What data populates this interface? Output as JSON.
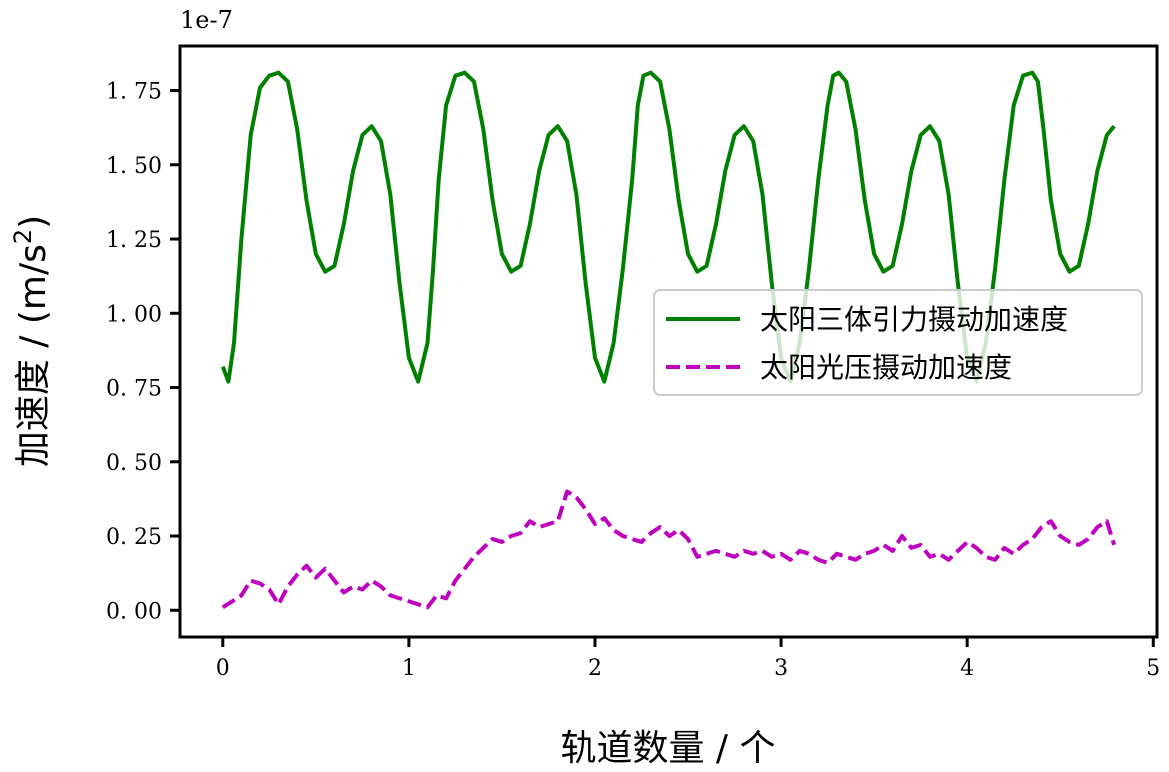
{
  "chart_data": {
    "type": "line",
    "xlabel": "轨道数量 / 个",
    "ylabel_prefix": "加速度 / (m/s",
    "ylabel_sup": "2",
    "ylabel_suffix": ")",
    "y_offset_text": "1e-7",
    "xlim": [
      -0.23,
      5.02
    ],
    "ylim": [
      -0.09,
      1.9
    ],
    "xticks": [
      0,
      1,
      2,
      3,
      4,
      5
    ],
    "xtick_labels": [
      "0",
      "1",
      "2",
      "3",
      "4",
      "5"
    ],
    "yticks": [
      0.0,
      0.25,
      0.5,
      0.75,
      1.0,
      1.25,
      1.5,
      1.75
    ],
    "ytick_labels": [
      "0. 00",
      "0. 25",
      "0. 50",
      "0. 75",
      "1. 00",
      "1. 25",
      "1. 50",
      "1. 75"
    ],
    "legend_position": "center-right",
    "series": [
      {
        "name": "太阳三体引力摄动加速度",
        "color": "#008000",
        "style": "solid",
        "x": [
          0.0,
          0.03,
          0.06,
          0.1,
          0.15,
          0.2,
          0.25,
          0.3,
          0.35,
          0.4,
          0.45,
          0.5,
          0.55,
          0.6,
          0.65,
          0.7,
          0.75,
          0.8,
          0.85,
          0.9,
          0.95,
          1.0,
          1.05,
          1.1,
          1.13,
          1.16,
          1.2,
          1.25,
          1.3,
          1.35,
          1.4,
          1.45,
          1.5,
          1.55,
          1.6,
          1.65,
          1.7,
          1.75,
          1.8,
          1.85,
          1.9,
          1.95,
          2.0,
          2.05,
          2.1,
          2.15,
          2.2,
          2.23,
          2.26,
          2.3,
          2.35,
          2.4,
          2.45,
          2.5,
          2.55,
          2.6,
          2.65,
          2.7,
          2.75,
          2.8,
          2.85,
          2.9,
          2.95,
          3.0,
          3.05,
          3.1,
          3.15,
          3.2,
          3.25,
          3.28,
          3.31,
          3.35,
          3.4,
          3.45,
          3.5,
          3.55,
          3.6,
          3.65,
          3.7,
          3.75,
          3.8,
          3.85,
          3.9,
          3.95,
          4.0,
          4.05,
          4.1,
          4.15,
          4.2,
          4.25,
          4.3,
          4.35,
          4.38,
          4.41,
          4.45,
          4.5,
          4.55,
          4.6,
          4.65,
          4.7,
          4.75,
          4.79
        ],
        "y": [
          0.82,
          0.77,
          0.9,
          1.25,
          1.6,
          1.76,
          1.8,
          1.81,
          1.78,
          1.62,
          1.38,
          1.2,
          1.14,
          1.16,
          1.3,
          1.48,
          1.6,
          1.63,
          1.58,
          1.4,
          1.1,
          0.85,
          0.77,
          0.9,
          1.15,
          1.45,
          1.7,
          1.8,
          1.81,
          1.78,
          1.62,
          1.38,
          1.2,
          1.14,
          1.16,
          1.3,
          1.48,
          1.6,
          1.63,
          1.58,
          1.4,
          1.1,
          0.85,
          0.77,
          0.9,
          1.15,
          1.45,
          1.7,
          1.8,
          1.81,
          1.78,
          1.62,
          1.38,
          1.2,
          1.14,
          1.16,
          1.3,
          1.48,
          1.6,
          1.63,
          1.58,
          1.4,
          1.1,
          0.85,
          0.77,
          0.9,
          1.15,
          1.45,
          1.7,
          1.8,
          1.81,
          1.78,
          1.62,
          1.38,
          1.2,
          1.14,
          1.16,
          1.3,
          1.48,
          1.6,
          1.63,
          1.58,
          1.4,
          1.1,
          0.85,
          0.77,
          0.9,
          1.15,
          1.45,
          1.7,
          1.8,
          1.81,
          1.78,
          1.62,
          1.38,
          1.2,
          1.14,
          1.16,
          1.3,
          1.48,
          1.6,
          1.63
        ]
      },
      {
        "name": "太阳光压摄动加速度",
        "color": "#bf00bf",
        "style": "dashed",
        "x": [
          0.0,
          0.05,
          0.1,
          0.15,
          0.2,
          0.25,
          0.3,
          0.35,
          0.4,
          0.45,
          0.5,
          0.55,
          0.6,
          0.65,
          0.7,
          0.75,
          0.8,
          0.85,
          0.9,
          0.95,
          1.0,
          1.05,
          1.1,
          1.15,
          1.2,
          1.25,
          1.3,
          1.35,
          1.4,
          1.45,
          1.5,
          1.55,
          1.6,
          1.65,
          1.7,
          1.75,
          1.8,
          1.85,
          1.9,
          1.95,
          2.0,
          2.05,
          2.1,
          2.15,
          2.2,
          2.25,
          2.3,
          2.35,
          2.4,
          2.45,
          2.5,
          2.55,
          2.6,
          2.65,
          2.7,
          2.75,
          2.8,
          2.85,
          2.9,
          2.95,
          3.0,
          3.05,
          3.1,
          3.15,
          3.2,
          3.25,
          3.3,
          3.35,
          3.4,
          3.45,
          3.5,
          3.55,
          3.6,
          3.65,
          3.7,
          3.75,
          3.8,
          3.85,
          3.9,
          3.95,
          4.0,
          4.05,
          4.1,
          4.15,
          4.2,
          4.25,
          4.3,
          4.35,
          4.4,
          4.45,
          4.5,
          4.55,
          4.6,
          4.65,
          4.7,
          4.75,
          4.79
        ],
        "y": [
          0.01,
          0.03,
          0.05,
          0.1,
          0.09,
          0.07,
          0.02,
          0.08,
          0.12,
          0.15,
          0.11,
          0.14,
          0.1,
          0.06,
          0.08,
          0.07,
          0.1,
          0.08,
          0.05,
          0.04,
          0.03,
          0.02,
          0.01,
          0.05,
          0.04,
          0.1,
          0.14,
          0.18,
          0.21,
          0.24,
          0.23,
          0.25,
          0.26,
          0.3,
          0.28,
          0.29,
          0.3,
          0.4,
          0.38,
          0.34,
          0.29,
          0.31,
          0.27,
          0.25,
          0.24,
          0.23,
          0.26,
          0.28,
          0.25,
          0.27,
          0.24,
          0.18,
          0.19,
          0.2,
          0.19,
          0.18,
          0.2,
          0.19,
          0.2,
          0.18,
          0.19,
          0.17,
          0.2,
          0.19,
          0.17,
          0.16,
          0.19,
          0.18,
          0.17,
          0.19,
          0.2,
          0.22,
          0.2,
          0.25,
          0.21,
          0.22,
          0.18,
          0.19,
          0.17,
          0.2,
          0.23,
          0.21,
          0.18,
          0.17,
          0.21,
          0.19,
          0.22,
          0.24,
          0.28,
          0.3,
          0.25,
          0.23,
          0.22,
          0.24,
          0.28,
          0.3,
          0.22
        ]
      }
    ]
  }
}
